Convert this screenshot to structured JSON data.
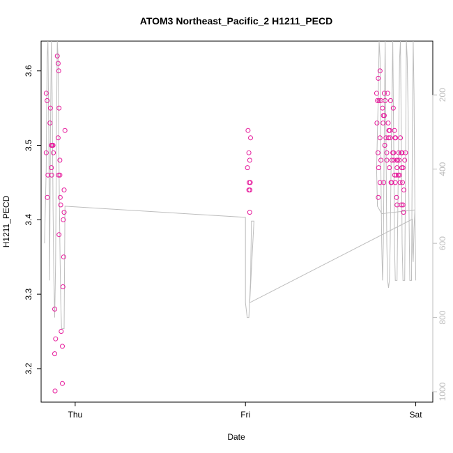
{
  "chart_data": {
    "type": "scatter",
    "title": "ATOM3 Northeast_Pacific_2 H1211_PECD",
    "xlabel": "Date",
    "ylabel": "H1211_PECD",
    "x_ticks": [
      {
        "label": "Thu",
        "day": 0
      },
      {
        "label": "Fri",
        "day": 1
      },
      {
        "label": "Sat",
        "day": 2
      }
    ],
    "xlim_days": [
      -0.2,
      2.1
    ],
    "ylim": [
      3.155,
      3.64
    ],
    "y_ticks": [
      3.2,
      3.3,
      3.4,
      3.5,
      3.6
    ],
    "y2_ticks": [
      200,
      400,
      600,
      800,
      1000
    ],
    "y2lim": [
      1028,
      55
    ],
    "point_color": "#e6199b",
    "line_color": "#bdbdbd",
    "series": [
      {
        "points": [
          {
            "x": -0.17,
            "y": 3.57
          },
          {
            "x": -0.165,
            "y": 3.56
          },
          {
            "x": -0.17,
            "y": 3.49
          },
          {
            "x": -0.16,
            "y": 3.46
          },
          {
            "x": -0.163,
            "y": 3.43
          },
          {
            "x": -0.145,
            "y": 3.55
          },
          {
            "x": -0.148,
            "y": 3.53
          },
          {
            "x": -0.14,
            "y": 3.5
          },
          {
            "x": -0.135,
            "y": 3.5
          },
          {
            "x": -0.14,
            "y": 3.47
          },
          {
            "x": -0.138,
            "y": 3.46
          },
          {
            "x": -0.13,
            "y": 3.5
          },
          {
            "x": -0.128,
            "y": 3.49
          },
          {
            "x": -0.12,
            "y": 3.28
          },
          {
            "x": -0.115,
            "y": 3.24
          },
          {
            "x": -0.12,
            "y": 3.22
          },
          {
            "x": -0.118,
            "y": 3.17
          },
          {
            "x": -0.105,
            "y": 3.62
          },
          {
            "x": -0.1,
            "y": 3.61
          },
          {
            "x": -0.097,
            "y": 3.6
          },
          {
            "x": -0.095,
            "y": 3.55
          },
          {
            "x": -0.1,
            "y": 3.51
          },
          {
            "x": -0.09,
            "y": 3.48
          },
          {
            "x": -0.098,
            "y": 3.46
          },
          {
            "x": -0.09,
            "y": 3.46
          },
          {
            "x": -0.088,
            "y": 3.43
          },
          {
            "x": -0.085,
            "y": 3.42
          },
          {
            "x": -0.095,
            "y": 3.38
          },
          {
            "x": -0.082,
            "y": 3.25
          },
          {
            "x": -0.075,
            "y": 3.23
          },
          {
            "x": -0.075,
            "y": 3.18
          },
          {
            "x": -0.07,
            "y": 3.4
          },
          {
            "x": -0.065,
            "y": 3.41
          },
          {
            "x": -0.068,
            "y": 3.35
          },
          {
            "x": -0.072,
            "y": 3.31
          },
          {
            "x": -0.065,
            "y": 3.44
          },
          {
            "x": -0.06,
            "y": 3.52
          },
          {
            "x": 1.015,
            "y": 3.52
          },
          {
            "x": 1.03,
            "y": 3.51
          },
          {
            "x": 1.02,
            "y": 3.49
          },
          {
            "x": 1.025,
            "y": 3.48
          },
          {
            "x": 1.012,
            "y": 3.47
          },
          {
            "x": 1.022,
            "y": 3.45
          },
          {
            "x": 1.028,
            "y": 3.45
          },
          {
            "x": 1.02,
            "y": 3.44
          },
          {
            "x": 1.026,
            "y": 3.44
          },
          {
            "x": 1.025,
            "y": 3.41
          },
          {
            "x": 1.79,
            "y": 3.6
          },
          {
            "x": 1.78,
            "y": 3.59
          },
          {
            "x": 1.77,
            "y": 3.57
          },
          {
            "x": 1.775,
            "y": 3.56
          },
          {
            "x": 1.785,
            "y": 3.56
          },
          {
            "x": 1.795,
            "y": 3.56
          },
          {
            "x": 1.772,
            "y": 3.53
          },
          {
            "x": 1.79,
            "y": 3.51
          },
          {
            "x": 1.778,
            "y": 3.49
          },
          {
            "x": 1.795,
            "y": 3.48
          },
          {
            "x": 1.782,
            "y": 3.47
          },
          {
            "x": 1.79,
            "y": 3.45
          },
          {
            "x": 1.78,
            "y": 3.43
          },
          {
            "x": 1.805,
            "y": 3.55
          },
          {
            "x": 1.81,
            "y": 3.54
          },
          {
            "x": 1.815,
            "y": 3.54
          },
          {
            "x": 1.808,
            "y": 3.53
          },
          {
            "x": 1.815,
            "y": 3.57
          },
          {
            "x": 1.82,
            "y": 3.56
          },
          {
            "x": 1.825,
            "y": 3.51
          },
          {
            "x": 1.818,
            "y": 3.5
          },
          {
            "x": 1.83,
            "y": 3.49
          },
          {
            "x": 1.83,
            "y": 3.48
          },
          {
            "x": 1.812,
            "y": 3.45
          },
          {
            "x": 1.835,
            "y": 3.57
          },
          {
            "x": 1.838,
            "y": 3.53
          },
          {
            "x": 1.842,
            "y": 3.52
          },
          {
            "x": 1.848,
            "y": 3.52
          },
          {
            "x": 1.85,
            "y": 3.51
          },
          {
            "x": 1.852,
            "y": 3.56
          },
          {
            "x": 1.84,
            "y": 3.51
          },
          {
            "x": 1.845,
            "y": 3.47
          },
          {
            "x": 1.855,
            "y": 3.45
          },
          {
            "x": 1.858,
            "y": 3.45
          },
          {
            "x": 1.86,
            "y": 3.48
          },
          {
            "x": 1.865,
            "y": 3.49
          },
          {
            "x": 1.868,
            "y": 3.55
          },
          {
            "x": 1.87,
            "y": 3.49
          },
          {
            "x": 1.872,
            "y": 3.48
          },
          {
            "x": 1.875,
            "y": 3.52
          },
          {
            "x": 1.878,
            "y": 3.51
          },
          {
            "x": 1.882,
            "y": 3.51
          },
          {
            "x": 1.876,
            "y": 3.46
          },
          {
            "x": 1.885,
            "y": 3.46
          },
          {
            "x": 1.88,
            "y": 3.45
          },
          {
            "x": 1.889,
            "y": 3.48
          },
          {
            "x": 1.893,
            "y": 3.48
          },
          {
            "x": 1.89,
            "y": 3.47
          },
          {
            "x": 1.887,
            "y": 3.43
          },
          {
            "x": 1.89,
            "y": 3.42
          },
          {
            "x": 1.9,
            "y": 3.49
          },
          {
            "x": 1.897,
            "y": 3.46
          },
          {
            "x": 1.905,
            "y": 3.46
          },
          {
            "x": 1.908,
            "y": 3.45
          },
          {
            "x": 1.902,
            "y": 3.48
          },
          {
            "x": 1.91,
            "y": 3.51
          },
          {
            "x": 1.915,
            "y": 3.49
          },
          {
            "x": 1.918,
            "y": 3.47
          },
          {
            "x": 1.92,
            "y": 3.49
          },
          {
            "x": 1.925,
            "y": 3.47
          },
          {
            "x": 1.922,
            "y": 3.45
          },
          {
            "x": 1.915,
            "y": 3.42
          },
          {
            "x": 1.925,
            "y": 3.42
          },
          {
            "x": 1.93,
            "y": 3.44
          },
          {
            "x": 1.928,
            "y": 3.41
          },
          {
            "x": 1.935,
            "y": 3.48
          },
          {
            "x": 1.94,
            "y": 3.49
          }
        ]
      }
    ],
    "pressure_line": [
      [
        -0.18,
        600
      ],
      [
        -0.17,
        400
      ],
      [
        -0.165,
        100
      ],
      [
        -0.16,
        55
      ],
      [
        -0.155,
        300
      ],
      [
        -0.15,
        700
      ],
      [
        -0.145,
        300
      ],
      [
        -0.14,
        55
      ],
      [
        -0.135,
        200
      ],
      [
        -0.13,
        500
      ],
      [
        -0.125,
        700
      ],
      [
        -0.12,
        800
      ],
      [
        -0.115,
        650
      ],
      [
        -0.11,
        300
      ],
      [
        -0.105,
        55
      ],
      [
        -0.1,
        100
      ],
      [
        -0.095,
        400
      ],
      [
        -0.09,
        600
      ],
      [
        -0.085,
        750
      ],
      [
        -0.08,
        830
      ],
      [
        -0.075,
        830
      ],
      [
        -0.07,
        830
      ],
      [
        -0.065,
        830
      ],
      [
        -0.06,
        500
      ],
      [
        1.0,
        530
      ],
      [
        1.0,
        760
      ],
      [
        1.01,
        800
      ],
      [
        1.02,
        800
      ],
      [
        1.025,
        750
      ],
      [
        1.03,
        700
      ],
      [
        1.035,
        540
      ],
      [
        1.04,
        540
      ],
      [
        1.05,
        540
      ],
      [
        1.025,
        760
      ],
      [
        1.98,
        535
      ],
      [
        1.98,
        600
      ],
      [
        1.985,
        650
      ],
      [
        1.99,
        560
      ],
      [
        1.995,
        510
      ],
      [
        1.8,
        520
      ],
      [
        1.775,
        500
      ],
      [
        1.77,
        400
      ],
      [
        1.775,
        300
      ],
      [
        1.78,
        200
      ],
      [
        1.785,
        55
      ],
      [
        1.79,
        100
      ],
      [
        1.795,
        400
      ],
      [
        1.8,
        600
      ],
      [
        1.805,
        700
      ],
      [
        1.81,
        600
      ],
      [
        1.815,
        300
      ],
      [
        1.82,
        55
      ],
      [
        1.825,
        300
      ],
      [
        1.83,
        600
      ],
      [
        1.835,
        700
      ],
      [
        1.84,
        720
      ],
      [
        1.845,
        700
      ],
      [
        1.85,
        600
      ],
      [
        1.855,
        400
      ],
      [
        1.86,
        200
      ],
      [
        1.865,
        55
      ],
      [
        1.87,
        300
      ],
      [
        1.875,
        600
      ],
      [
        1.88,
        700
      ],
      [
        1.885,
        700
      ],
      [
        1.89,
        700
      ],
      [
        1.895,
        500
      ],
      [
        1.9,
        300
      ],
      [
        1.905,
        100
      ],
      [
        1.91,
        55
      ],
      [
        1.915,
        300
      ],
      [
        1.92,
        600
      ],
      [
        1.925,
        700
      ],
      [
        1.93,
        700
      ],
      [
        1.935,
        700
      ],
      [
        1.94,
        400
      ],
      [
        1.945,
        55
      ],
      [
        1.95,
        100
      ],
      [
        1.955,
        250
      ],
      [
        1.96,
        500
      ],
      [
        1.965,
        700
      ],
      [
        1.97,
        700
      ],
      [
        1.975,
        700
      ],
      [
        1.98,
        300
      ],
      [
        1.985,
        55
      ],
      [
        1.99,
        200
      ],
      [
        1.995,
        500
      ],
      [
        2.0,
        700
      ]
    ]
  }
}
